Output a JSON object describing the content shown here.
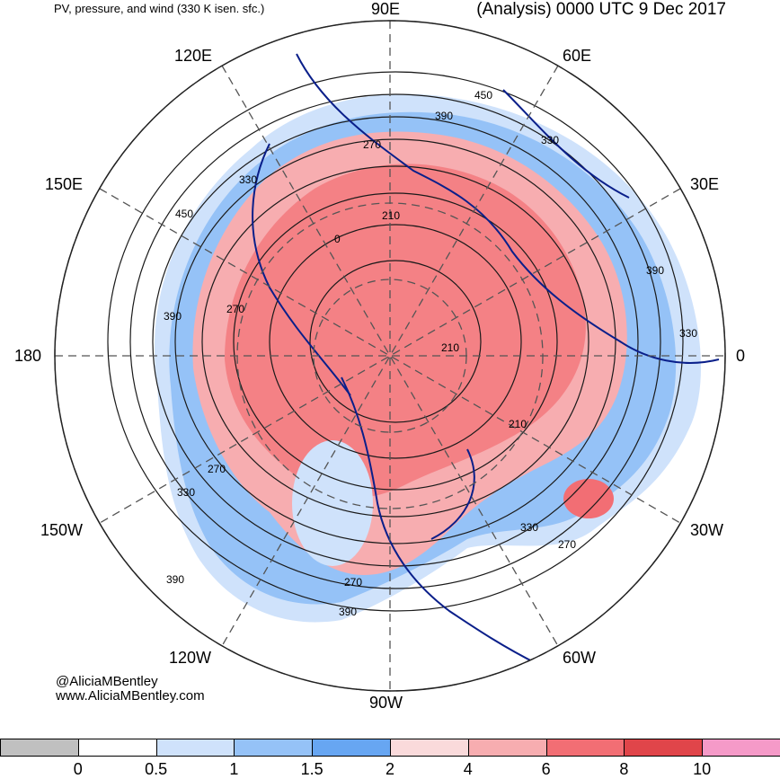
{
  "header": {
    "left_title": "PV, pressure, and wind (330 K isen. sfc.)",
    "right_title": "(Analysis) 0000 UTC 9 Dec 2017"
  },
  "map": {
    "projection": "north-polar-stereographic",
    "longitude_labels": {
      "top": "90E",
      "upper_right_1": "60E",
      "upper_right_2": "30E",
      "right": "0",
      "lower_right_1": "30W",
      "lower_right_2": "60W",
      "bottom": "90W",
      "lower_left_1": "120W",
      "lower_left_2": "150W",
      "left": "180",
      "upper_left_1": "150E",
      "upper_left_2": "120E"
    },
    "contour_labels": [
      "450",
      "390",
      "330",
      "270",
      "210",
      "0",
      "210",
      "270",
      "330",
      "390",
      "450",
      "390",
      "330",
      "270",
      "210",
      "270",
      "330",
      "390",
      "270",
      "330",
      "390"
    ],
    "colors": {
      "pv_low_blue_1": "#cfe2fb",
      "pv_low_blue_2": "#95c2f7",
      "pv_low_blue_3": "#67a6f2",
      "pv_high_red_1": "#fadadb",
      "pv_high_red_2": "#f7adb0",
      "pv_high_red_3": "#f26e74",
      "coast": "#0a1f8a",
      "contour": "#1a1a1a",
      "grid": "#555555"
    }
  },
  "credits": {
    "handle": "@AliciaMBentley",
    "website": "www.AliciaMBentley.com"
  },
  "colorbar": {
    "colors": [
      "#c0c0c0",
      "#ffffff",
      "#cfe2fb",
      "#95c2f7",
      "#67a6f2",
      "#fadadb",
      "#f7adb0",
      "#f26e74",
      "#e0454a",
      "#f59ac8"
    ],
    "ticks": [
      "0",
      "0.5",
      "1",
      "1.5",
      "2",
      "4",
      "6",
      "8",
      "10"
    ]
  }
}
